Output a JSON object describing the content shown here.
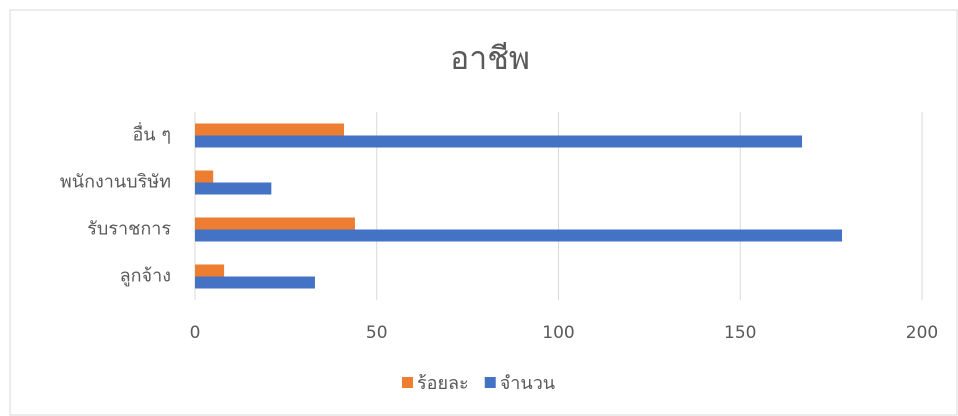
{
  "chart_data": {
    "type": "bar",
    "orientation": "horizontal",
    "title": "อาชีพ",
    "categories": [
      "ลูกจ้าง",
      "รับราชการ",
      "พนักงานบริษัท",
      "อื่น ๆ"
    ],
    "series": [
      {
        "name": "ร้อยละ",
        "color": "#ed7d31",
        "values": [
          8,
          44,
          5,
          41
        ]
      },
      {
        "name": "จำนวน",
        "color": "#4472c4",
        "values": [
          33,
          178,
          21,
          167
        ]
      }
    ],
    "xlim": [
      0,
      200
    ],
    "xticks": [
      0,
      50,
      100,
      150,
      200
    ],
    "grid": true,
    "legend": "bottom"
  }
}
